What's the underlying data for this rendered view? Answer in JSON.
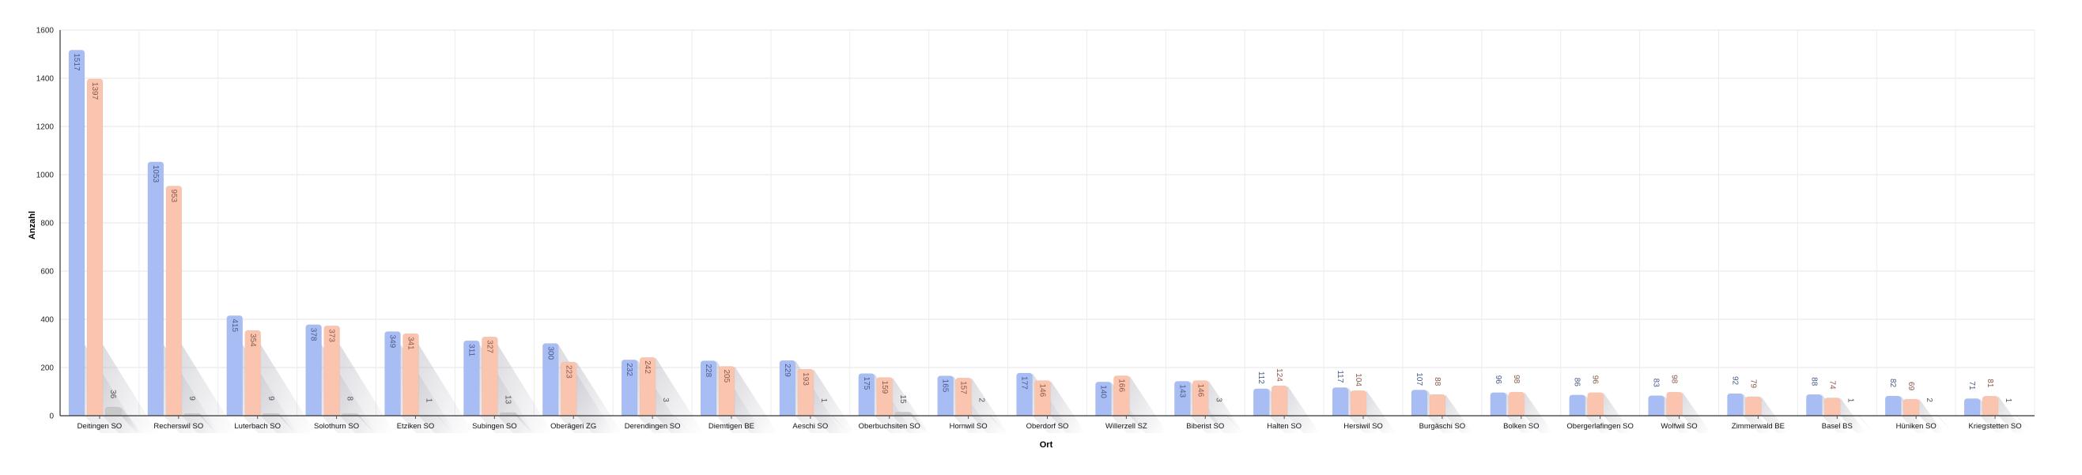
{
  "chart_data": {
    "type": "bar",
    "xlabel": "Ort",
    "ylabel": "Anzahl",
    "ylim": [
      0,
      1600
    ],
    "yticks": [
      0,
      200,
      400,
      600,
      800,
      1000,
      1200,
      1400,
      1600
    ],
    "grid": true,
    "categories": [
      "Deitingen SO",
      "Recherswil SO",
      "Luterbach SO",
      "Solothurn SO",
      "Etziken SO",
      "Subingen SO",
      "Oberägeri ZG",
      "Derendingen SO",
      "Diemtigen BE",
      "Aeschi SO",
      "Oberbuchsiten SO",
      "Hornwil SO",
      "Oberdorf SO",
      "Willerzell SZ",
      "Biberist SO",
      "Halten SO",
      "Hersiwil SO",
      "Burgäschi SO",
      "Bolken SO",
      "Obergerlafingen SO",
      "Wolfwil SO",
      "Zimmerwald BE",
      "Basel BS",
      "Hüniken SO",
      "Kriegstetten SO"
    ],
    "series": [
      {
        "color": "#a9bdf5",
        "label_color": "#4a5a8a",
        "values": [
          1517,
          1053,
          415,
          378,
          349,
          311,
          300,
          232,
          228,
          229,
          175,
          165,
          177,
          140,
          143,
          112,
          117,
          107,
          96,
          86,
          83,
          92,
          88,
          82,
          71
        ]
      },
      {
        "color": "#fbc4ae",
        "label_color": "#8a5a4a",
        "values": [
          1397,
          953,
          354,
          373,
          341,
          327,
          223,
          242,
          205,
          193,
          159,
          157,
          146,
          166,
          146,
          124,
          104,
          88,
          98,
          96,
          98,
          79,
          74,
          69,
          81
        ]
      },
      {
        "color": "#c9c9c9",
        "label_color": "#555555",
        "values": [
          36,
          9,
          9,
          8,
          1,
          13,
          null,
          3,
          null,
          1,
          15,
          2,
          null,
          null,
          3,
          null,
          null,
          null,
          null,
          null,
          null,
          null,
          1,
          2,
          1
        ]
      }
    ]
  }
}
